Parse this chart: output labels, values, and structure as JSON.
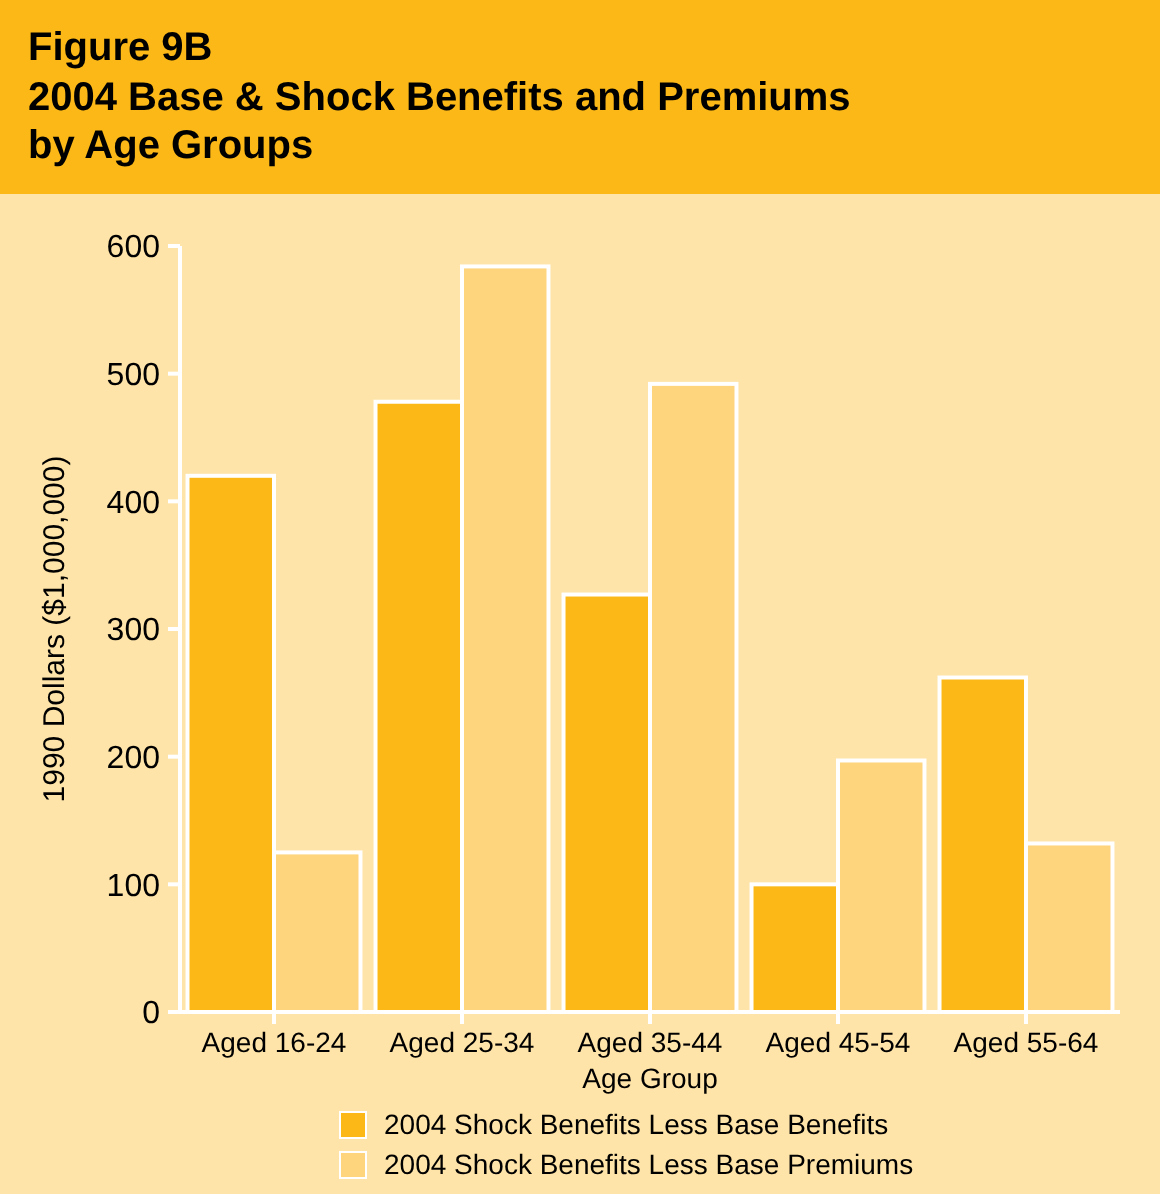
{
  "chart_data": {
    "type": "bar",
    "title": "Figure 9B",
    "subtitle": "2004 Base & Shock Benefits and Premiums by Age Groups",
    "xlabel": "Age Group",
    "ylabel": "1990 Dollars ($1,000,000)",
    "categories": [
      "Aged 16-24",
      "Aged 25-34",
      "Aged 35-44",
      "Aged 45-54",
      "Aged 55-64"
    ],
    "series": [
      {
        "name": "2004 Shock Benefits Less Base Benefits",
        "color": "#fbb817",
        "values": [
          420,
          478,
          327,
          100,
          262
        ]
      },
      {
        "name": "2004 Shock Benefits Less Base Premiums",
        "color": "#fed47c",
        "values": [
          125,
          584,
          492,
          197,
          132
        ]
      }
    ],
    "ylim": [
      0,
      600
    ],
    "yticks": [
      0,
      100,
      200,
      300,
      400,
      500,
      600
    ],
    "grid": false,
    "legend": "bottom"
  }
}
